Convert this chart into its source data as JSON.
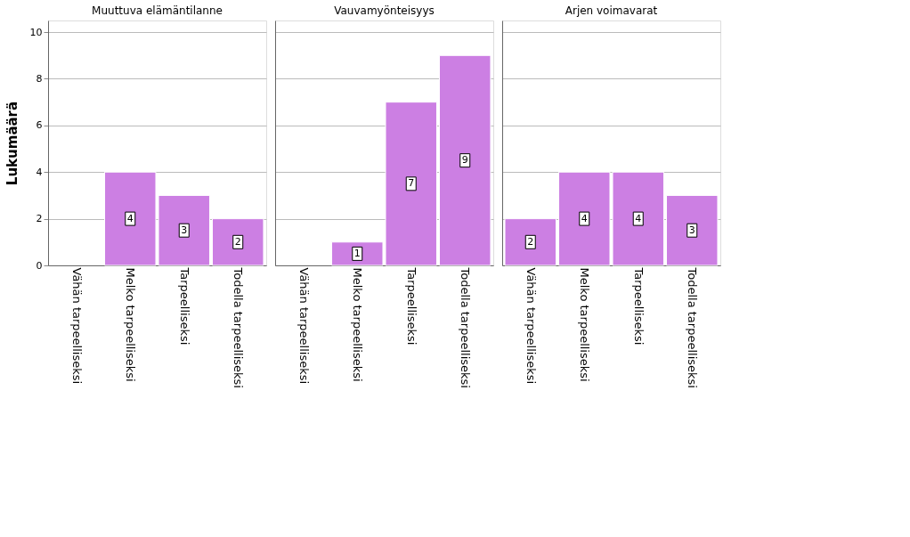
{
  "chart_data": [
    {
      "type": "bar",
      "title": "Muuttuva elämäntilanne",
      "ylabel": "Lukumäärä",
      "categories": [
        "Vähän tarpeelliseksi",
        "Melko tarpeelliseksi",
        "Tarpeelliseksi",
        "Todella tarpeelliseksi"
      ],
      "values": [
        null,
        4,
        3,
        2
      ],
      "color": "#cc7fe3",
      "ylim": [
        0,
        10.5
      ],
      "yticks": [
        0,
        2,
        4,
        6,
        8,
        10
      ],
      "grid": "y",
      "data_labels": true
    },
    {
      "type": "bar",
      "title": "Vauvamyönteisyys",
      "categories": [
        "Vähän tarpeelliseksi",
        "Melko tarpeelliseksi",
        "Tarpeelliseksi",
        "Todella tarpeelliseksi"
      ],
      "values": [
        null,
        1,
        7,
        9
      ],
      "color": "#cc7fe3",
      "ylim": [
        0,
        10.5
      ],
      "yticks": [
        0,
        2,
        4,
        6,
        8,
        10
      ],
      "grid": "y",
      "data_labels": true,
      "tick_labels": "x"
    },
    {
      "type": "bar",
      "title": "Arjen voimavarat",
      "categories": [
        "Vähän tarpeelliseksi",
        "Melko tarpeelliseksi",
        "Tarpeelliseksi",
        "Todella tarpeelliseksi"
      ],
      "values": [
        2,
        4,
        4,
        3
      ],
      "color": "#cc7fe3",
      "ylim": [
        0,
        10.5
      ],
      "yticks": [
        0,
        2,
        4,
        6,
        8,
        10
      ],
      "grid": "y",
      "data_labels": true,
      "tick_labels": "x"
    }
  ]
}
